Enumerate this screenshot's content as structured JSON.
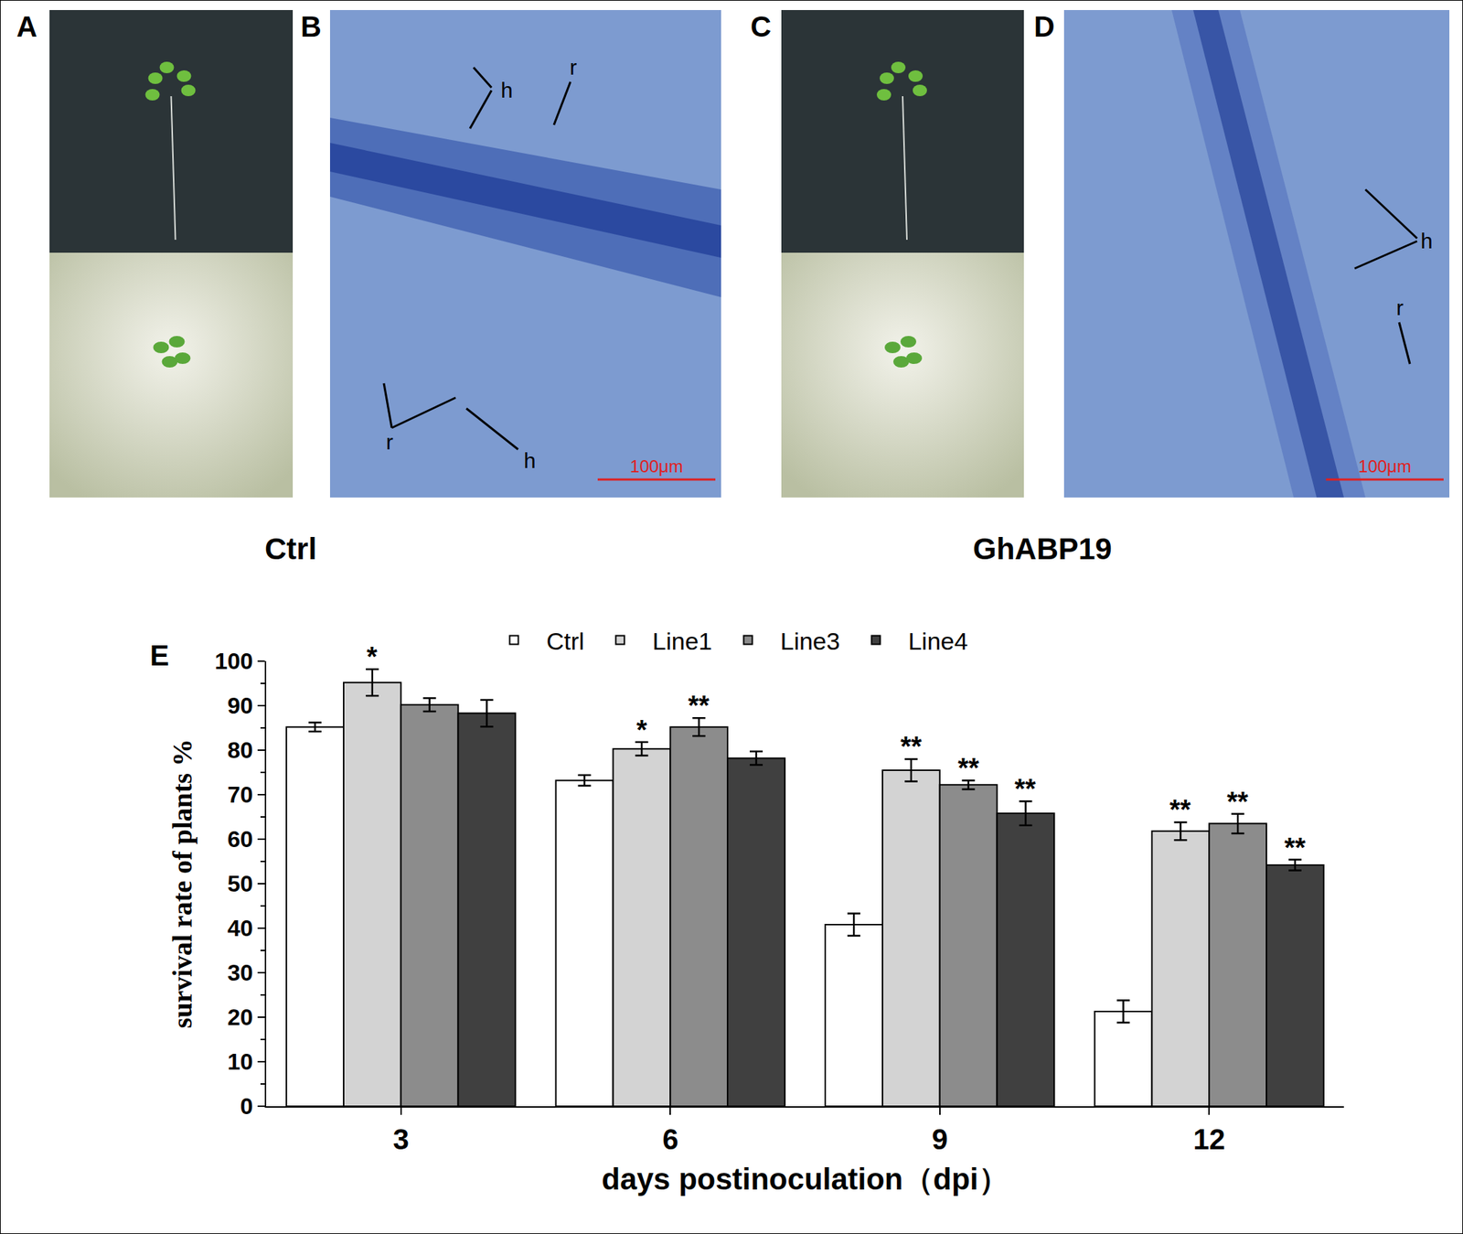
{
  "panels": [
    {
      "label": "A"
    },
    {
      "label": "B",
      "annotations": [
        "h",
        "r",
        "r",
        "h"
      ],
      "scale_bar": "100μm"
    },
    {
      "label": "C"
    },
    {
      "label": "D",
      "annotations": [
        "h",
        "r"
      ],
      "scale_bar": "100μm"
    }
  ],
  "groups": [
    {
      "label": "Ctrl"
    },
    {
      "label": "GhABP19"
    }
  ],
  "chart_panel_label": "E",
  "chart_data": {
    "type": "bar",
    "x_label": "days postinoculation（dpi）",
    "y_label": "survival rate of plants %",
    "categories": [
      "3",
      "6",
      "9",
      "12"
    ],
    "series": [
      {
        "name": "Ctrl",
        "color": "#ffffff",
        "values": [
          85.2,
          73.2,
          40.8,
          21.3
        ],
        "errors": [
          1.0,
          1.2,
          2.5,
          2.5
        ],
        "significance": [
          null,
          null,
          null,
          null
        ]
      },
      {
        "name": "Line1",
        "color": "#d3d3d3",
        "values": [
          95.2,
          80.3,
          75.5,
          61.8
        ],
        "errors": [
          3.0,
          1.5,
          2.5,
          2.0
        ],
        "significance": [
          "*",
          "*",
          "**",
          "**"
        ]
      },
      {
        "name": "Line3",
        "color": "#8c8c8c",
        "values": [
          90.2,
          85.2,
          72.2,
          63.5
        ],
        "errors": [
          1.5,
          2.0,
          1.0,
          2.2
        ],
        "significance": [
          null,
          "**",
          "**",
          "**"
        ]
      },
      {
        "name": "Line4",
        "color": "#404040",
        "values": [
          88.3,
          78.2,
          65.8,
          54.2
        ],
        "errors": [
          3.0,
          1.5,
          2.7,
          1.2
        ],
        "significance": [
          null,
          null,
          "**",
          "**"
        ]
      }
    ],
    "ylim": [
      0,
      100
    ],
    "yticks": [
      0,
      10,
      20,
      30,
      40,
      50,
      60,
      70,
      80,
      90,
      100
    ],
    "grid": false,
    "legend": "top"
  }
}
